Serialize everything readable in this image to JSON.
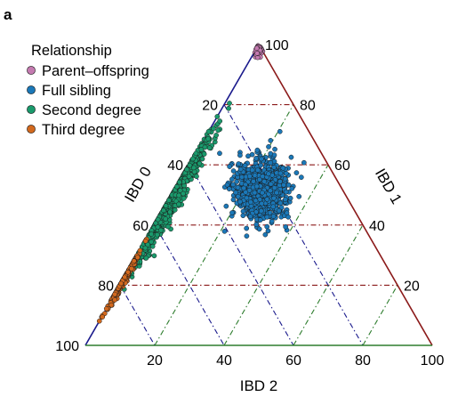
{
  "figure": {
    "panel_label": "a"
  },
  "chart_data": {
    "type": "scatter",
    "subtype": "ternary",
    "title": "",
    "axes": {
      "ibd0": {
        "label": "IBD 0",
        "ticks": [
          "20",
          "40",
          "60",
          "80",
          "100"
        ],
        "color": "#1a1a8c",
        "grid_color": "#1a1a8c"
      },
      "ibd1": {
        "label": "IBD 1",
        "ticks": [
          "20",
          "40",
          "60",
          "80",
          "100"
        ],
        "color": "#8b1a1a",
        "grid_color": "#8b1a1a"
      },
      "ibd2": {
        "label": "IBD 2",
        "ticks": [
          "20",
          "40",
          "60",
          "80",
          "100"
        ],
        "color": "#2e7d2e",
        "grid_color": "#2e7d2e"
      }
    },
    "range": [
      0,
      100
    ],
    "grid": true,
    "grid_style": "dash-dot",
    "legend": {
      "title": "Relationship",
      "position": "top-left",
      "entries": [
        {
          "label": "Parent–offspring",
          "color": "#c47ab0"
        },
        {
          "label": "Full sibling",
          "color": "#1b78b8"
        },
        {
          "label": "Second degree",
          "color": "#1a9a6c"
        },
        {
          "label": "Third degree",
          "color": "#d2691e"
        }
      ]
    },
    "series": [
      {
        "name": "Parent–offspring",
        "color": "#c47ab0",
        "distribution": {
          "ibd0_mean": 1,
          "ibd0_sd": 1,
          "ibd1_mean": 98,
          "ibd1_sd": 1.5,
          "ibd2_mean": 1,
          "ibd2_sd": 1,
          "n": 40
        }
      },
      {
        "name": "Full sibling",
        "color": "#1b78b8",
        "distribution": {
          "ibd0_mean": 24,
          "ibd0_sd": 5,
          "ibd1_mean": 51,
          "ibd1_sd": 6,
          "ibd2_mean": 25,
          "ibd2_sd": 5,
          "n": 1100
        }
      },
      {
        "name": "Second degree",
        "color": "#1a9a6c",
        "distribution": {
          "ibd0_mean": 52,
          "ibd0_sd": 11,
          "ibd1_mean": 47,
          "ibd1_sd": 11,
          "ibd2_mean": 1,
          "ibd2_sd": 1.2,
          "n": 650
        }
      },
      {
        "name": "Third degree",
        "color": "#d2691e",
        "distribution": {
          "ibd0_mean": 79,
          "ibd0_sd": 5,
          "ibd1_mean": 21,
          "ibd1_sd": 5,
          "ibd2_mean": 0,
          "ibd2_sd": 0.5,
          "n": 220
        }
      }
    ]
  }
}
